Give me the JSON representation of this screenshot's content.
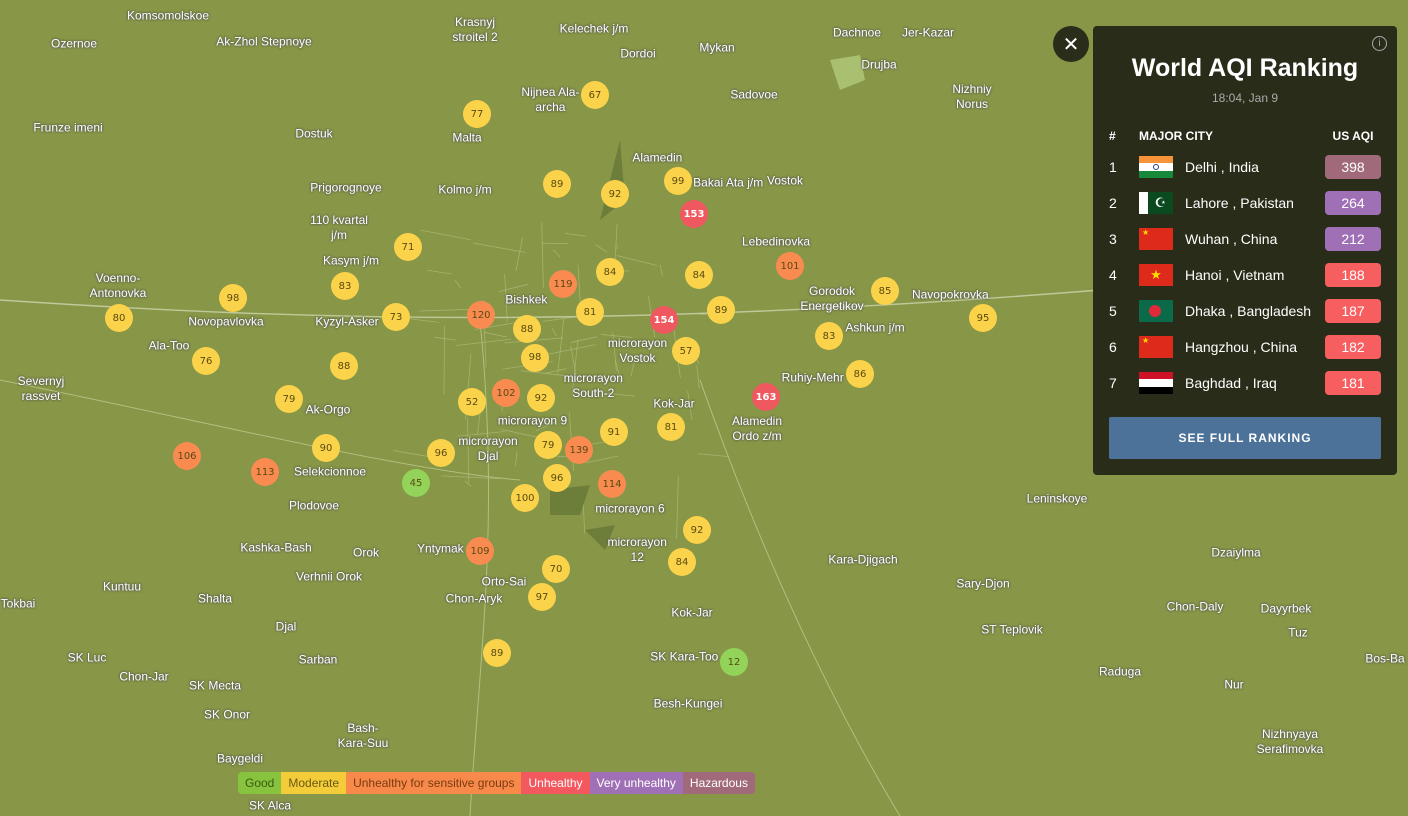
{
  "panel": {
    "title": "World AQI Ranking",
    "time": "18:04, Jan 9",
    "col_rank": "#",
    "col_city": "MAJOR CITY",
    "col_aqi": "US AQI",
    "button": "SEE FULL RANKING",
    "close_icon": "close-icon",
    "info_icon": "info-icon",
    "rows": [
      {
        "rank": "1",
        "city": "Delhi , India",
        "aqi": "398",
        "flag": "india",
        "color": "#a06a7b"
      },
      {
        "rank": "2",
        "city": "Lahore , Pakistan",
        "aqi": "264",
        "flag": "pakistan",
        "color": "#a070b6"
      },
      {
        "rank": "3",
        "city": "Wuhan , China",
        "aqi": "212",
        "flag": "china",
        "color": "#a070b6"
      },
      {
        "rank": "4",
        "city": "Hanoi , Vietnam",
        "aqi": "188",
        "flag": "vietnam",
        "color": "#f65e5f"
      },
      {
        "rank": "5",
        "city": "Dhaka , Bangladesh",
        "aqi": "187",
        "flag": "bangladesh",
        "color": "#f65e5f"
      },
      {
        "rank": "6",
        "city": "Hangzhou , China",
        "aqi": "182",
        "flag": "china",
        "color": "#f65e5f"
      },
      {
        "rank": "7",
        "city": "Baghdad , Iraq",
        "aqi": "181",
        "flag": "iraq",
        "color": "#f65e5f"
      }
    ]
  },
  "legend": [
    {
      "label": "Good",
      "color": "#87c33e",
      "text": "#3d5a10"
    },
    {
      "label": "Moderate",
      "color": "#f4cc3a",
      "text": "#6a5a10"
    },
    {
      "label": "Unhealthy for sensitive groups",
      "color": "#f78a4b",
      "text": "#7a3a10"
    },
    {
      "label": "Unhealthy",
      "color": "#f2585e",
      "text": "#ffffff"
    },
    {
      "label": "Very unhealthy",
      "color": "#a070b6",
      "text": "#ffffff"
    },
    {
      "label": "Hazardous",
      "color": "#a06a7b",
      "text": "#ffffff"
    }
  ],
  "stations": [
    "77",
    "67",
    "89",
    "92",
    "99",
    "153",
    "71",
    "119",
    "84",
    "84",
    "101",
    "85",
    "95",
    "98",
    "83",
    "73",
    "120",
    "88",
    "98",
    "81",
    "154",
    "89",
    "83",
    "80",
    "57",
    "76",
    "88",
    "86",
    "79",
    "52",
    "102",
    "92",
    "163",
    "91",
    "81",
    "106",
    "113",
    "90",
    "96",
    "79",
    "139",
    "96",
    "45",
    "114",
    "100",
    "92",
    "84",
    "109",
    "70",
    "97",
    "89",
    "12"
  ],
  "places": [
    "Komsomolskoe",
    "Ozernoe",
    "Ak-Zhol Stepnoye",
    "Krasnyj\nstroitel 2",
    "Kelechek j/m",
    "Dordoi",
    "Mykan",
    "Dachnoe",
    "Jer-Kazar",
    "Drujba",
    "Nijnea Ala-\narcha",
    "Sadovoe",
    "Nizhniy\nNorus",
    "Frunze imeni",
    "Dostuk",
    "Malta",
    "Alamedin",
    "Prigorognoye",
    "Kolmo j/m",
    "Bakai Ata j/m",
    "Vostok",
    "110 kvartal\nj/m",
    "Kasym j/m",
    "Lebedinovka",
    "Gorodok\nEnergetikov",
    "Voenno-\nAntonovka",
    "Novopavlovka",
    "Kyzyl-Asker",
    "Bishkek",
    "microrayon\nVostok",
    "Ashkun j/m",
    "Navopokrovka",
    "Ala-Too",
    "microrayon\nSouth-2",
    "Ruhiy-Mehr",
    "Severnyj\nrassvet",
    "Ak-Orgo",
    "Alamedin\nOrdo z/m",
    "Kok-Jar",
    "Selekcionnoe",
    "microrayon\nDjal",
    "microrayon 9",
    "Plodovoe",
    "microrayon 6",
    "Leninskoye",
    "Kashka-Bash",
    "Orok",
    "Yntymak",
    "microrayon\n12",
    "Kara-Djigach",
    "Dzaiylma",
    "Verhnii Orok",
    "Kuntuu",
    "Orto-Sai",
    "Sary-Djon",
    "Tokbai",
    "Shalta",
    "Chon-Aryk",
    "Kok-Jar",
    "Chon-Daly",
    "Dayyrbek",
    "Djal",
    "ST Teplovik",
    "Tuz",
    "SK Luc",
    "Sarban",
    "SK Kara-Too",
    "Bos-Ba",
    "Chon-Jar",
    "SK Mecta",
    "Raduga",
    "Nur",
    "SK Onor",
    "Besh-Kungei",
    "Bash-\nKara-Suu",
    "Nizhnyaya\nSerafimovka",
    "Baygeldi",
    "SK Alca"
  ]
}
